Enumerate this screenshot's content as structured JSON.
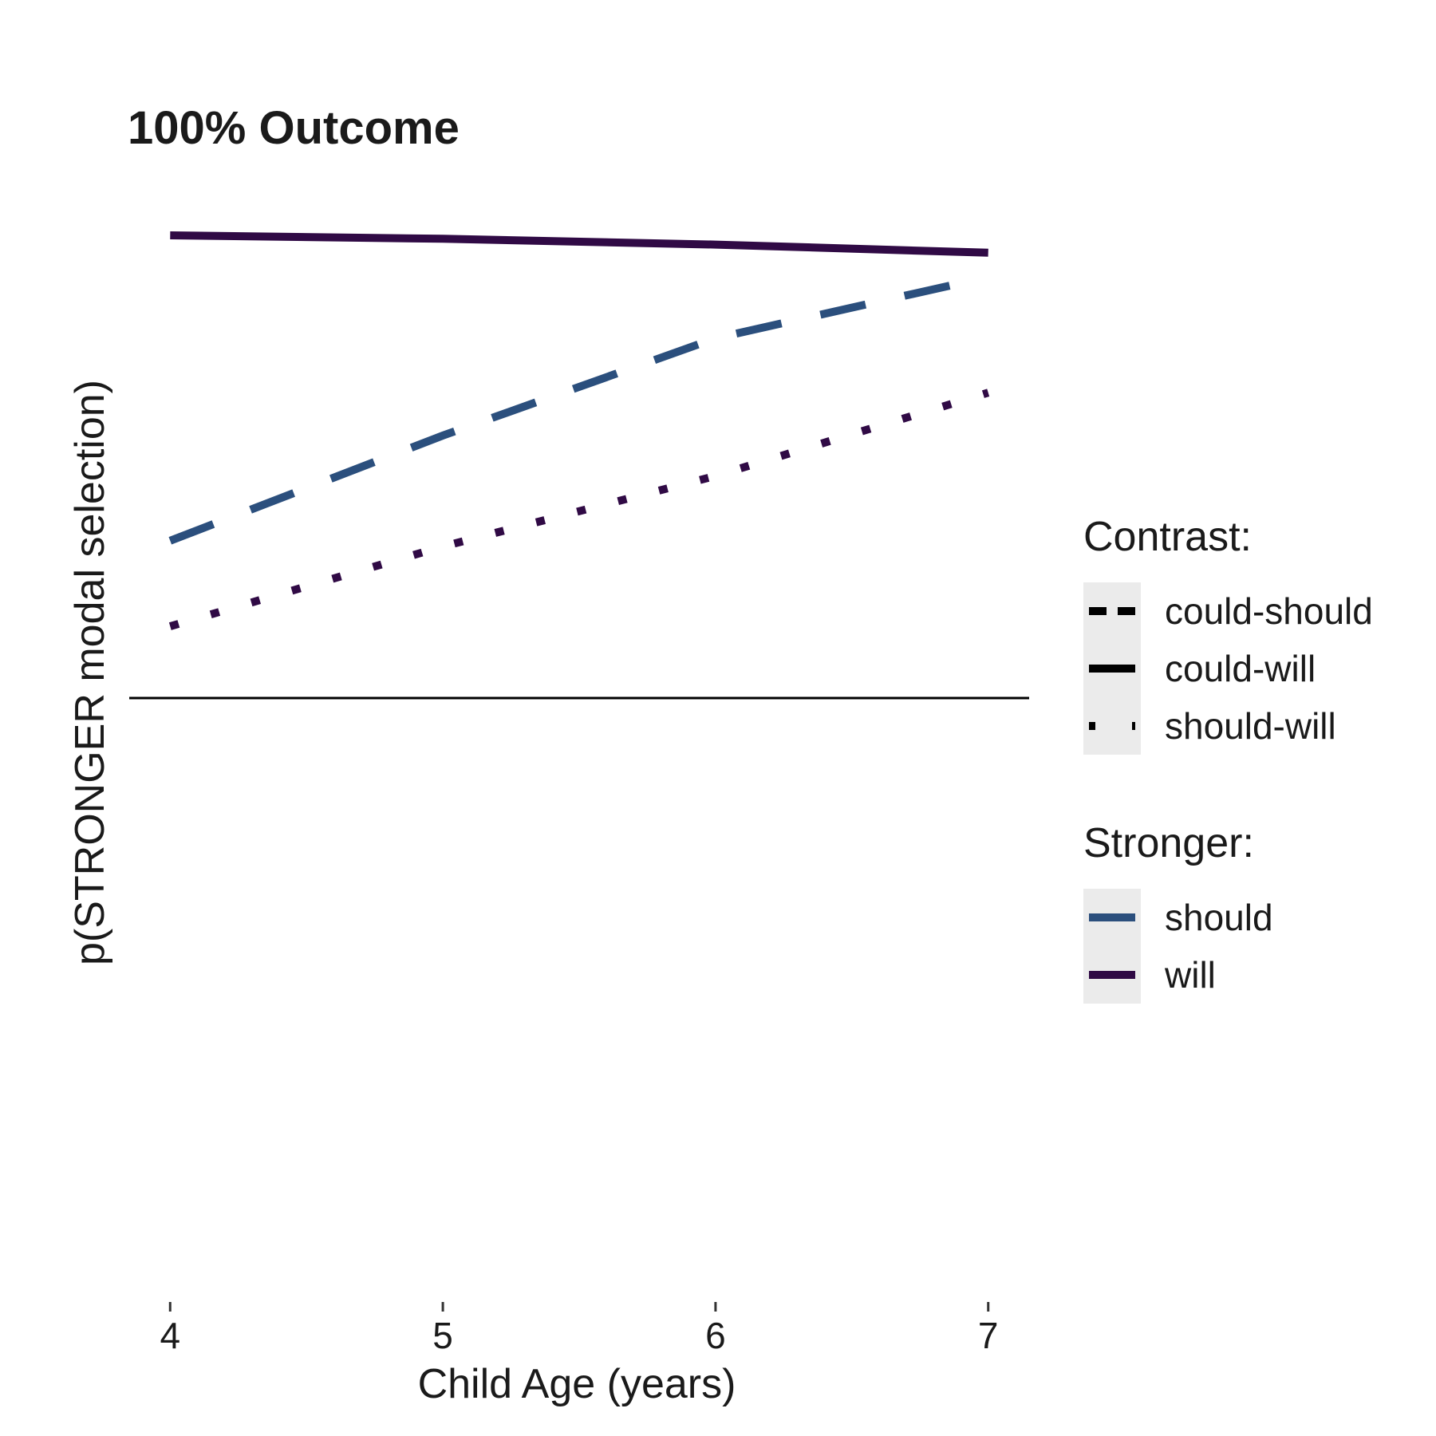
{
  "chart_data": {
    "type": "line",
    "title": "100% Outcome",
    "xlabel": "Child Age (years)",
    "ylabel": "p(STRONGER modal selection)",
    "x": [
      4,
      5,
      6,
      7
    ],
    "xlim": [
      3.85,
      7.15
    ],
    "ylim": [
      0,
      1
    ],
    "reference_line": 0.5,
    "grid": false,
    "series": [
      {
        "contrast": "could-will",
        "stronger": "will",
        "color": "#300a45",
        "linetype": "solid",
        "values": [
          0.9,
          0.897,
          0.892,
          0.885
        ]
      },
      {
        "contrast": "could-should",
        "stronger": "should",
        "color": "#2b4f7d",
        "linetype": "dashed",
        "values": [
          0.636,
          0.727,
          0.811,
          0.864
        ]
      },
      {
        "contrast": "should-will",
        "stronger": "will",
        "color": "#300a45",
        "linetype": "dotted",
        "values": [
          0.562,
          0.631,
          0.692,
          0.764
        ]
      }
    ],
    "legends": [
      {
        "title": "Contrast:",
        "items": [
          {
            "label": "could-should",
            "linetype": "dashed",
            "color": "#000000"
          },
          {
            "label": "could-will",
            "linetype": "solid",
            "color": "#000000"
          },
          {
            "label": "should-will",
            "linetype": "dotted",
            "color": "#000000"
          }
        ]
      },
      {
        "title": "Stronger:",
        "items": [
          {
            "label": "should",
            "linetype": "solid",
            "color": "#2b4f7d"
          },
          {
            "label": "will",
            "linetype": "solid",
            "color": "#300a45"
          }
        ]
      }
    ],
    "legend_position": "right"
  }
}
